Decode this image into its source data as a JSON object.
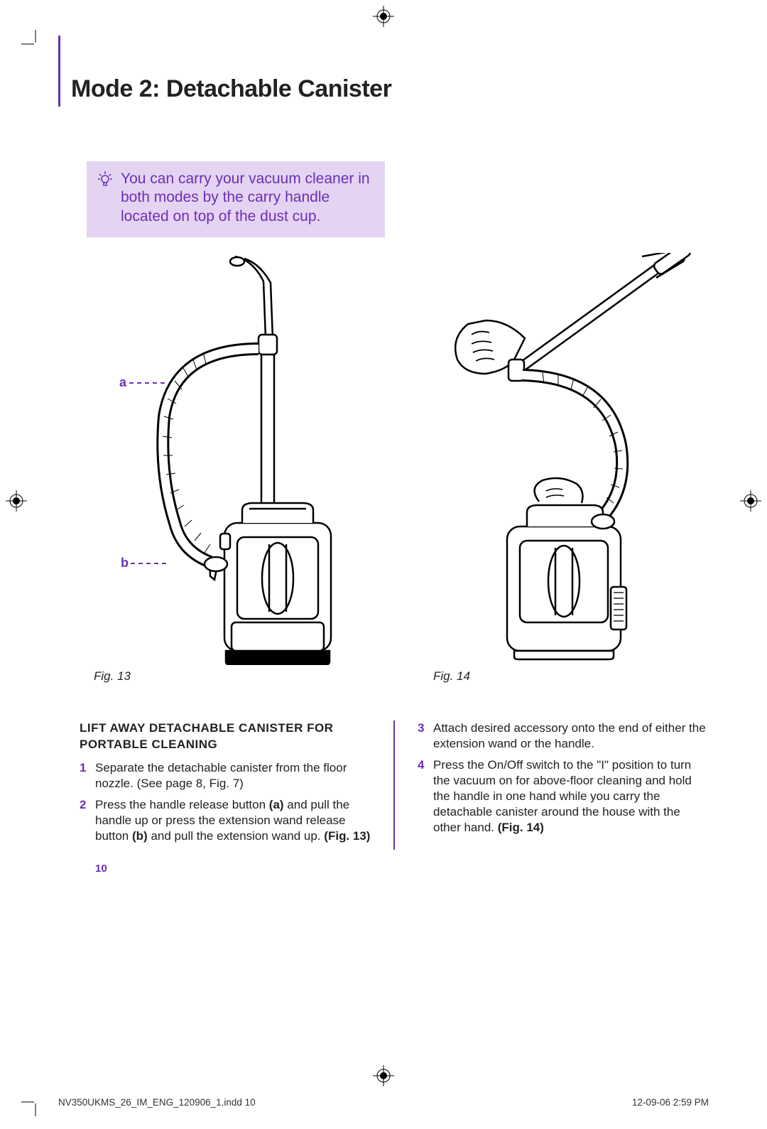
{
  "heading": "Mode 2: Detachable Canister",
  "tip": {
    "text": "You can carry your vacuum cleaner in both modes by the carry handle located on top of the dust cup."
  },
  "figures": {
    "fig13": {
      "label_a": "a",
      "label_b": "b",
      "caption": "Fig. 13"
    },
    "fig14": {
      "caption": "Fig. 14"
    }
  },
  "instructions": {
    "subheading": "LIFT AWAY DETACHABLE CANISTER FOR PORTABLE CLEANING",
    "steps_left": [
      {
        "num": "1",
        "html": "Separate the detachable canister from the floor nozzle. (See page 8, Fig. 7)"
      },
      {
        "num": "2",
        "html": "Press the handle release button <b>(a)</b> and pull the handle up or press the extension wand release button <b>(b)</b> and pull the extension wand up. <b>(Fig. 13)</b>"
      }
    ],
    "steps_right": [
      {
        "num": "3",
        "html": "Attach desired accessory onto the end of either the extension wand or the handle."
      },
      {
        "num": "4",
        "html": "Press the On/Off switch to the \"I\" position to turn the vacuum on for above-floor cleaning and hold the handle in one hand while you carry the detachable canister around the house with the other hand. <b>(Fig. 14)</b>"
      }
    ]
  },
  "page_number": "10",
  "footer": {
    "left": "NV350UKMS_26_IM_ENG_120906_1.indd   10",
    "right": "12-09-06   2:59 PM"
  },
  "colors": {
    "accent": "#6b2fb5",
    "tip_bg": "#e4d4f2",
    "text": "#222222"
  }
}
